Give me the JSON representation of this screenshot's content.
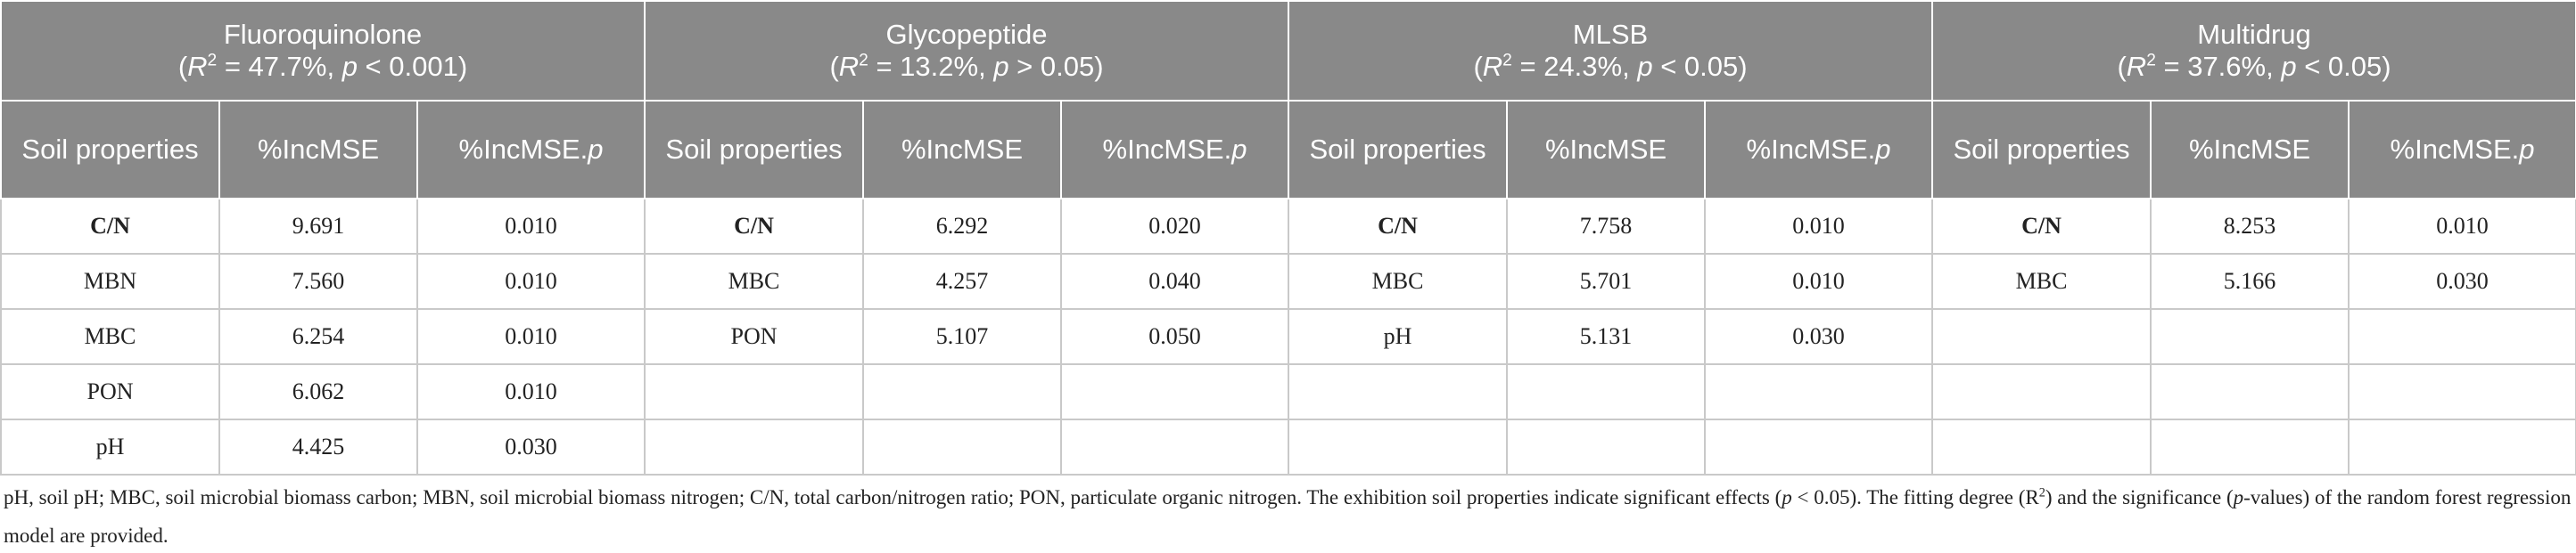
{
  "table": {
    "columns": [
      "Soil properties",
      "%IncMSE",
      [
        "%IncMSE.",
        "p"
      ]
    ],
    "groups": [
      {
        "name": "Fluoroquinolone",
        "stat": [
          "(",
          "R",
          "2",
          " = 47.7%, ",
          "p",
          " < 0.001)"
        ],
        "rows": [
          [
            "C/N",
            "9.691",
            "0.010"
          ],
          [
            "MBN",
            "7.560",
            "0.010"
          ],
          [
            "MBC",
            "6.254",
            "0.010"
          ],
          [
            "PON",
            "6.062",
            "0.010"
          ],
          [
            "pH",
            "4.425",
            "0.030"
          ]
        ]
      },
      {
        "name": "Glycopeptide",
        "stat": [
          "(",
          "R",
          "2",
          " = 13.2%, ",
          "p",
          " > 0.05)"
        ],
        "rows": [
          [
            "C/N",
            "6.292",
            "0.020"
          ],
          [
            "MBC",
            "4.257",
            "0.040"
          ],
          [
            "PON",
            "5.107",
            "0.050"
          ]
        ]
      },
      {
        "name": "MLSB",
        "stat": [
          "(",
          "R",
          "2",
          " = 24.3%, ",
          "p",
          " < 0.05)"
        ],
        "rows": [
          [
            "C/N",
            "7.758",
            "0.010"
          ],
          [
            "MBC",
            "5.701",
            "0.010"
          ],
          [
            "pH",
            "5.131",
            "0.030"
          ]
        ]
      },
      {
        "name": "Multidrug",
        "stat": [
          "(",
          "R",
          "2",
          " = 37.6%, ",
          "p",
          " < 0.05)"
        ],
        "rows": [
          [
            "C/N",
            "8.253",
            "0.010"
          ],
          [
            "MBC",
            "5.166",
            "0.030"
          ]
        ]
      }
    ]
  },
  "footnote": [
    "pH, soil pH; MBC, soil microbial biomass carbon; MBN, soil microbial biomass nitrogen; C/N, total carbon/nitrogen ratio; PON, particulate organic nitrogen. The exhibition soil properties indicate significant effects (",
    "p",
    " < 0.05). The fitting degree (R",
    "2",
    ") and the significance (",
    "p",
    "-values) of the random forest regression model are provided."
  ]
}
